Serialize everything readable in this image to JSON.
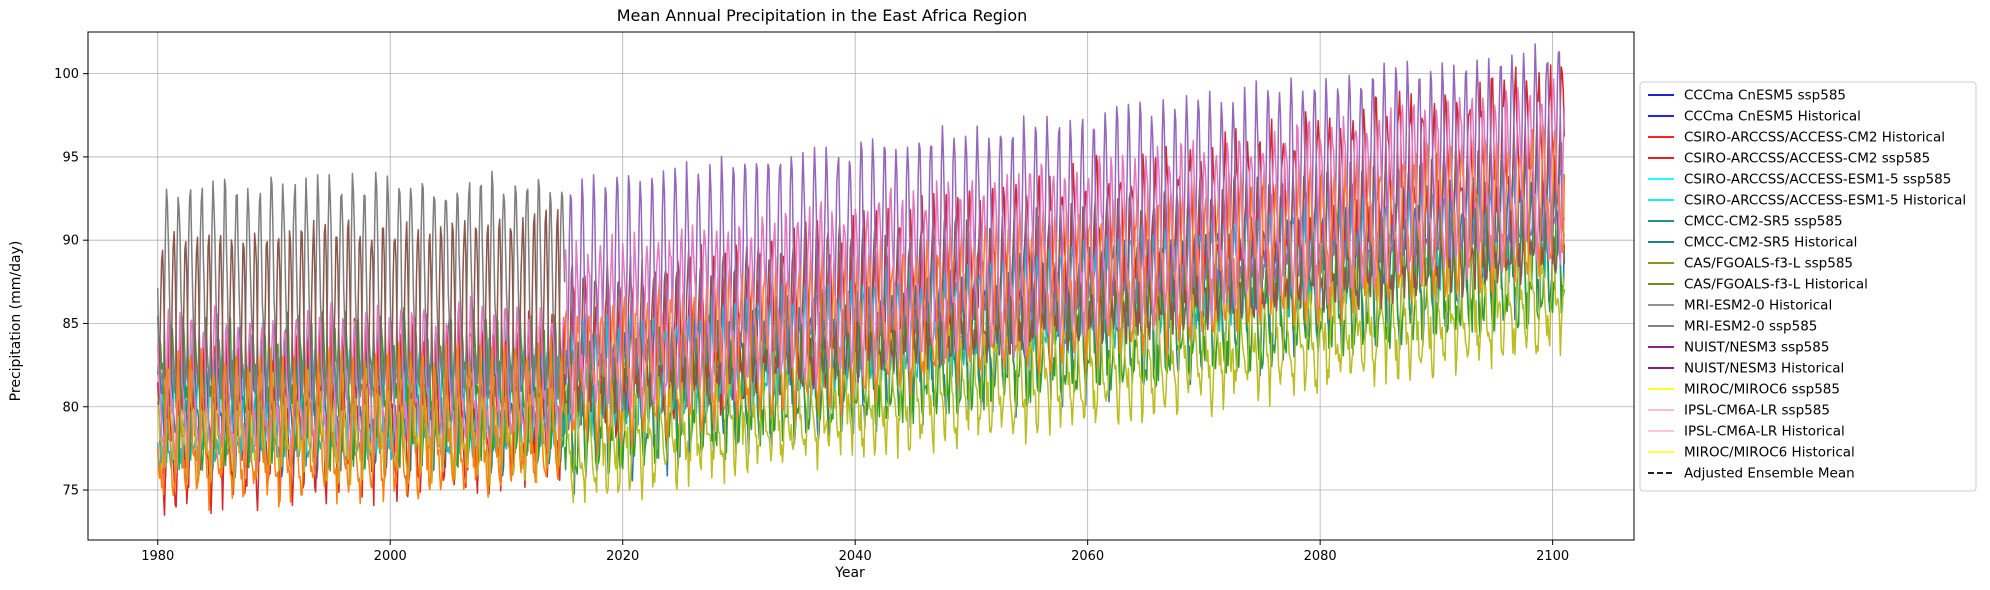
{
  "chart_data": {
    "type": "line",
    "title": "Mean Annual Precipitation in the East Africa Region",
    "xlabel": "Year",
    "ylabel": "Precipitation (mm/day)",
    "xlim": [
      1974,
      2107
    ],
    "ylim": [
      72,
      102.5
    ],
    "xticks": [
      1980,
      2000,
      2020,
      2040,
      2060,
      2080,
      2100
    ],
    "yticks": [
      75,
      80,
      85,
      90,
      95,
      100
    ],
    "grid": true,
    "legend_position": "right, outside plot",
    "series": [
      {
        "name": "CCCma CnESM5 ssp585",
        "color": "#0000cd",
        "dash": false,
        "drawColor": "#1f77b4",
        "x_range": [
          2015,
          2101
        ],
        "start": 79.5,
        "end": 90,
        "amp": 3.2,
        "noise": 1.2
      },
      {
        "name": "CCCma CnESM5 Historical",
        "color": "#0000ff",
        "dash": false,
        "drawColor": "#1f77b4",
        "x_range": [
          1980,
          2015
        ],
        "start": 80.5,
        "end": 80.5,
        "amp": 3.5,
        "noise": 1.0
      },
      {
        "name": "CSIRO-ARCCSS/ACCESS-CM2 Historical",
        "color": "#ff0000",
        "dash": false,
        "drawColor": "#d62728",
        "x_range": [
          1980,
          2015
        ],
        "start": 78.5,
        "end": 80,
        "amp": 3.8,
        "noise": 1.4
      },
      {
        "name": "CSIRO-ARCCSS/ACCESS-CM2 ssp585",
        "color": "#e00000",
        "dash": false,
        "drawColor": "#d62728",
        "x_range": [
          2015,
          2101
        ],
        "start": 82,
        "end": 95.5,
        "amp": 3.6,
        "noise": 1.4
      },
      {
        "name": "CSIRO-ARCCSS/ACCESS-ESM1-5 ssp585",
        "color": "#00ffff",
        "dash": false,
        "drawColor": "#17becf",
        "x_range": [
          2015,
          2101
        ],
        "start": 81,
        "end": 91,
        "amp": 2.5,
        "noise": 1.0
      },
      {
        "name": "CSIRO-ARCCSS/ACCESS-ESM1-5 Historical",
        "color": "#00e5ee",
        "dash": false,
        "drawColor": "#17becf",
        "x_range": [
          1980,
          2015
        ],
        "start": 79,
        "end": 80,
        "amp": 2.5,
        "noise": 1.0
      },
      {
        "name": "CMCC-CM2-SR5 ssp585",
        "color": "#008080",
        "dash": false,
        "drawColor": "#2ca02c",
        "x_range": [
          2015,
          2101
        ],
        "start": 79,
        "end": 88.5,
        "amp": 3.0,
        "noise": 1.4
      },
      {
        "name": "CMCC-CM2-SR5 Historical",
        "color": "#007070",
        "dash": false,
        "drawColor": "#2ca02c",
        "x_range": [
          1980,
          2015
        ],
        "start": 81,
        "end": 81,
        "amp": 3.2,
        "noise": 1.2
      },
      {
        "name": "CAS/FGOALS-f3-L ssp585",
        "color": "#808000",
        "dash": false,
        "drawColor": "#bcbd22",
        "x_range": [
          2015,
          2101
        ],
        "start": 77.5,
        "end": 86.5,
        "amp": 2.4,
        "noise": 1.3
      },
      {
        "name": "CAS/FGOALS-f3-L Historical",
        "color": "#707000",
        "dash": false,
        "drawColor": "#bcbd22",
        "x_range": [
          1980,
          2015
        ],
        "start": 78.5,
        "end": 78.5,
        "amp": 2.2,
        "noise": 1.0
      },
      {
        "name": "MRI-ESM2-0 Historical",
        "color": "#808080",
        "dash": false,
        "drawColor": "#7f7f7f",
        "x_range": [
          1980,
          2015
        ],
        "start": 86,
        "end": 86.5,
        "amp": 5.5,
        "noise": 0.9
      },
      {
        "name": "MRI-ESM2-0 ssp585",
        "color": "#707070",
        "dash": false,
        "drawColor": "#8c564b",
        "x_range": [
          2015,
          2101
        ],
        "start": 83,
        "end": 91.5,
        "amp": 3.4,
        "noise": 1.2
      },
      {
        "name": "NUIST/NESM3 ssp585",
        "color": "#800080",
        "dash": false,
        "drawColor": "#9467bd",
        "x_range": [
          2015,
          2101
        ],
        "start": 86,
        "end": 94.5,
        "amp": 5.2,
        "noise": 0.8
      },
      {
        "name": "NUIST/NESM3 Historical",
        "color": "#700070",
        "dash": false,
        "drawColor": "#8c564b",
        "x_range": [
          1980,
          2015
        ],
        "start": 83.5,
        "end": 84.5,
        "amp": 5.0,
        "noise": 0.8
      },
      {
        "name": "MIROC/MIROC6 ssp585",
        "color": "#ffff00",
        "dash": false,
        "drawColor": "#ff7f0e",
        "x_range": [
          2015,
          2101
        ],
        "start": 81.5,
        "end": 92.5,
        "amp": 3.4,
        "noise": 1.3
      },
      {
        "name": "IPSL-CM6A-LR ssp585",
        "color": "#ffb6c1",
        "dash": false,
        "drawColor": "#e377c2",
        "x_range": [
          2015,
          2101
        ],
        "start": 84,
        "end": 94,
        "amp": 4.2,
        "noise": 1.0
      },
      {
        "name": "IPSL-CM6A-LR Historical",
        "color": "#ffc0cb",
        "dash": false,
        "drawColor": "#e377c2",
        "x_range": [
          1980,
          2015
        ],
        "start": 80.5,
        "end": 81.5,
        "amp": 3.5,
        "noise": 1.0
      },
      {
        "name": "MIROC/MIROC6 Historical",
        "color": "#ffff33",
        "dash": false,
        "drawColor": "#ff7f0e",
        "x_range": [
          1980,
          2015
        ],
        "start": 78,
        "end": 79,
        "amp": 3.4,
        "noise": 1.1
      },
      {
        "name": "Adjusted Ensemble Mean",
        "color": "#000000",
        "dash": true,
        "drawColor": null,
        "x_range": [],
        "start": null,
        "end": null,
        "amp": 0,
        "noise": 0
      }
    ]
  }
}
